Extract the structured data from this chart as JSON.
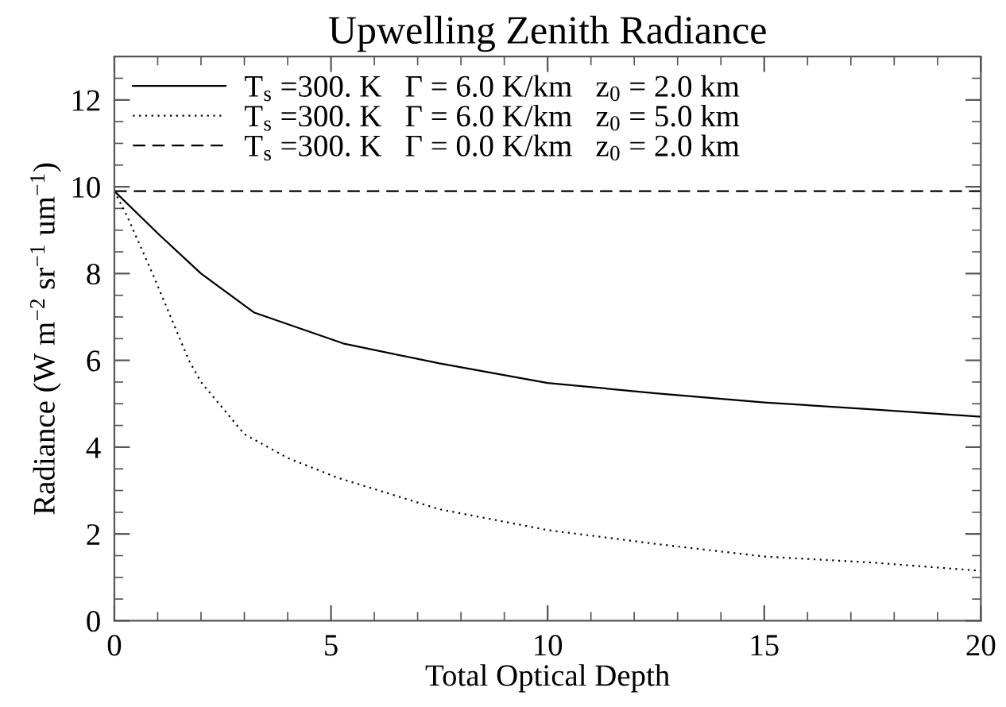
{
  "chart_data": {
    "type": "line",
    "title": "Upwelling Zenith Radiance",
    "xlabel": "Total Optical Depth",
    "ylabel": "Radiance (W m$^{−2}$ sr$^{−1}$ um$^{−1}$)",
    "xlim": [
      0,
      20
    ],
    "xticks": [
      0,
      5,
      10,
      15,
      20
    ],
    "ylim": [
      0,
      13
    ],
    "yticks": [
      0,
      2,
      4,
      6,
      8,
      10,
      12
    ],
    "grid": false,
    "legend": "top left",
    "marker": "none",
    "series": [
      {
        "name": "T$_{s}$ =300. K   Γ = 6.0 K/km   z$_{0}$ = 2.0 km",
        "color": "#000000",
        "line_style": "solid",
        "x": [
          0,
          1.03,
          2.0,
          3.23,
          5.28,
          7.5,
          10,
          12.5,
          15,
          17.5,
          20
        ],
        "values": [
          9.9,
          8.9,
          8.0,
          7.1,
          6.39,
          5.93,
          5.48,
          5.24,
          5.03,
          4.87,
          4.7
        ]
      },
      {
        "name": "T$_{s}$ =300. K   Γ = 6.0 K/km   z$_{0}$ = 5.0 km",
        "color": "#000000",
        "line_style": "dotted",
        "x": [
          0,
          0.29,
          0.88,
          1.72,
          2.0,
          3.0,
          4.0,
          5.14,
          7.5,
          10,
          12.5,
          15,
          17.5,
          20
        ],
        "values": [
          9.9,
          9.33,
          8.0,
          6.0,
          5.5,
          4.3,
          3.75,
          3.3,
          2.57,
          2.09,
          1.77,
          1.48,
          1.34,
          1.15
        ]
      },
      {
        "name": "T$_{s}$ =300. K   Γ = 0.0 K/km   z$_{0}$ = 2.0 km",
        "color": "#000000",
        "line_style": "dashed",
        "x": [
          0,
          20
        ],
        "values": [
          9.9,
          9.9
        ]
      }
    ]
  }
}
